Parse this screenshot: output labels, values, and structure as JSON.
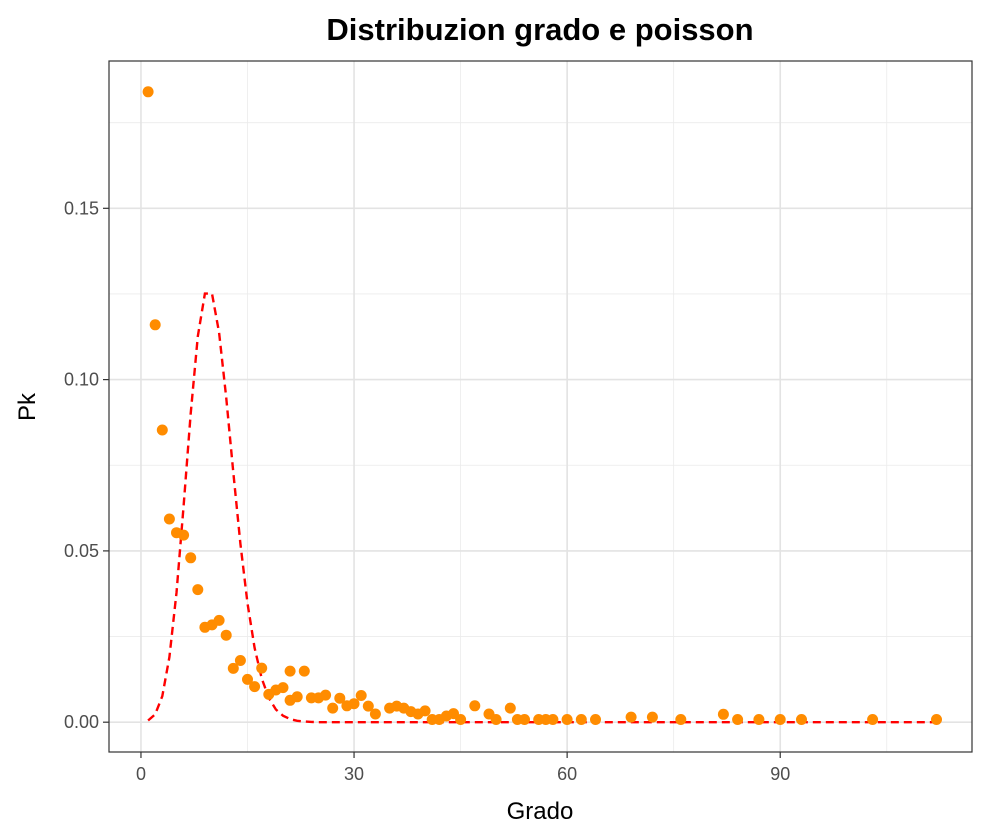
{
  "chart_data": {
    "type": "scatter",
    "title": "Distribuzion grado e poisson",
    "xlabel": "Grado",
    "ylabel": "Pk",
    "xlim": [
      -4.5,
      117
    ],
    "ylim": [
      -0.0087,
      0.193
    ],
    "x_ticks": [
      0,
      30,
      60,
      90
    ],
    "x_tick_labels": [
      "0",
      "30",
      "60",
      "90"
    ],
    "y_ticks": [
      0.0,
      0.05,
      0.1,
      0.15
    ],
    "y_tick_labels": [
      "0.00",
      "0.05",
      "0.10",
      "0.15"
    ],
    "grid": true,
    "legend": "none",
    "series": [
      {
        "kind": "points",
        "color": "#ff8c00",
        "points": [
          [
            1,
            0.184
          ],
          [
            2,
            0.116
          ],
          [
            3,
            0.0853
          ],
          [
            4,
            0.0593
          ],
          [
            5,
            0.0553
          ],
          [
            6,
            0.0546
          ],
          [
            7,
            0.048
          ],
          [
            8,
            0.0387
          ],
          [
            9,
            0.0277
          ],
          [
            10,
            0.0284
          ],
          [
            11,
            0.0297
          ],
          [
            12,
            0.0254
          ],
          [
            13,
            0.0157
          ],
          [
            14,
            0.018
          ],
          [
            15,
            0.0125
          ],
          [
            16,
            0.0104
          ],
          [
            17,
            0.0158
          ],
          [
            18,
            0.0081
          ],
          [
            19,
            0.0094
          ],
          [
            20,
            0.0101
          ],
          [
            21,
            0.0064
          ],
          [
            21,
            0.0149
          ],
          [
            22,
            0.0074
          ],
          [
            23,
            0.0149
          ],
          [
            24,
            0.0071
          ],
          [
            25,
            0.0071
          ],
          [
            26,
            0.0079
          ],
          [
            27,
            0.0041
          ],
          [
            28,
            0.007
          ],
          [
            29,
            0.0048
          ],
          [
            30,
            0.0054
          ],
          [
            31,
            0.0078
          ],
          [
            32,
            0.0047
          ],
          [
            33,
            0.0024
          ],
          [
            35,
            0.0041
          ],
          [
            36,
            0.0047
          ],
          [
            37,
            0.0041
          ],
          [
            38,
            0.0031
          ],
          [
            39,
            0.0024
          ],
          [
            40,
            0.0033
          ],
          [
            41,
            0.0008
          ],
          [
            42,
            0.0008
          ],
          [
            43,
            0.0018
          ],
          [
            44,
            0.0025
          ],
          [
            45,
            0.0008
          ],
          [
            47,
            0.0048
          ],
          [
            49,
            0.0024
          ],
          [
            50,
            0.0008
          ],
          [
            52,
            0.0041
          ],
          [
            53,
            0.0008
          ],
          [
            54,
            0.0008
          ],
          [
            56,
            0.0008
          ],
          [
            57,
            0.0008
          ],
          [
            58,
            0.0008
          ],
          [
            60,
            0.0008
          ],
          [
            62,
            0.0008
          ],
          [
            64,
            0.0008
          ],
          [
            69,
            0.0015
          ],
          [
            72,
            0.0015
          ],
          [
            76,
            0.0008
          ],
          [
            82,
            0.0023
          ],
          [
            84,
            0.0008
          ],
          [
            87,
            0.0008
          ],
          [
            90,
            0.0008
          ],
          [
            93,
            0.0008
          ],
          [
            103,
            0.0008
          ],
          [
            112,
            0.0008
          ]
        ]
      },
      {
        "kind": "line",
        "style": "dashed",
        "color": "#ff0000",
        "points": [
          [
            1,
            0.0005
          ],
          [
            2,
            0.0023
          ],
          [
            3,
            0.0076
          ],
          [
            4,
            0.019
          ],
          [
            5,
            0.0378
          ],
          [
            6,
            0.0631
          ],
          [
            7,
            0.0901
          ],
          [
            8,
            0.1126
          ],
          [
            9,
            0.1251
          ],
          [
            10,
            0.1251
          ],
          [
            11,
            0.1137
          ],
          [
            12,
            0.0948
          ],
          [
            13,
            0.0729
          ],
          [
            14,
            0.0521
          ],
          [
            15,
            0.0347
          ],
          [
            16,
            0.0217
          ],
          [
            17,
            0.0128
          ],
          [
            18,
            0.0071
          ],
          [
            19,
            0.0037
          ],
          [
            20,
            0.0019
          ],
          [
            21,
            0.0009
          ],
          [
            22,
            0.0004
          ],
          [
            23,
            0.0002
          ],
          [
            24,
            0.0001
          ],
          [
            25,
            0.0
          ],
          [
            30,
            0.0
          ],
          [
            40,
            0.0
          ],
          [
            50,
            0.0
          ],
          [
            60,
            0.0
          ],
          [
            70,
            0.0
          ],
          [
            80,
            0.0
          ],
          [
            90,
            0.0
          ],
          [
            100,
            0.0
          ],
          [
            112,
            0.0
          ]
        ]
      }
    ]
  }
}
